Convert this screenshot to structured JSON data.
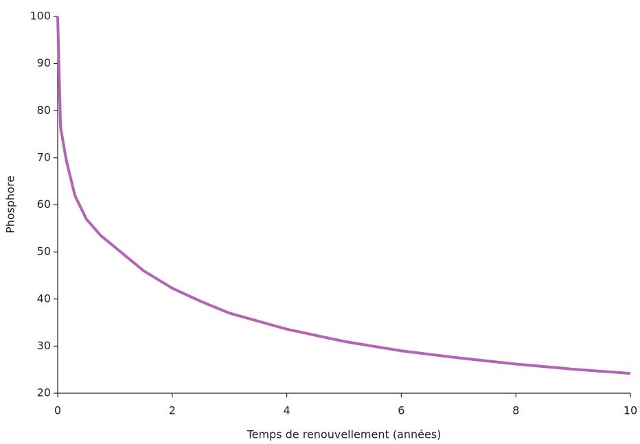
{
  "chart_data": {
    "type": "line",
    "x_label": "Temps de renouvellement (années)",
    "y_label": "Phosphore",
    "x": [
      0,
      0.05,
      0.15,
      0.3,
      0.5,
      0.75,
      1,
      1.5,
      2,
      2.5,
      3,
      4,
      5,
      6,
      7,
      8,
      9,
      10
    ],
    "series": [
      {
        "name": "Phosphore",
        "color": "#b463b6",
        "values": [
          100,
          76.5,
          69.5,
          62,
          57,
          53.5,
          51,
          46,
          42.3,
          39.5,
          37,
          33.6,
          31,
          29,
          27.5,
          26.2,
          25.1,
          24.2
        ]
      }
    ],
    "xlim": [
      0,
      10
    ],
    "xticks": [
      0,
      2,
      4,
      6,
      8,
      10
    ],
    "ylim": [
      20,
      100
    ],
    "yticks": [
      20,
      30,
      40,
      50,
      60,
      70,
      80,
      90,
      100
    ],
    "grid": false
  }
}
